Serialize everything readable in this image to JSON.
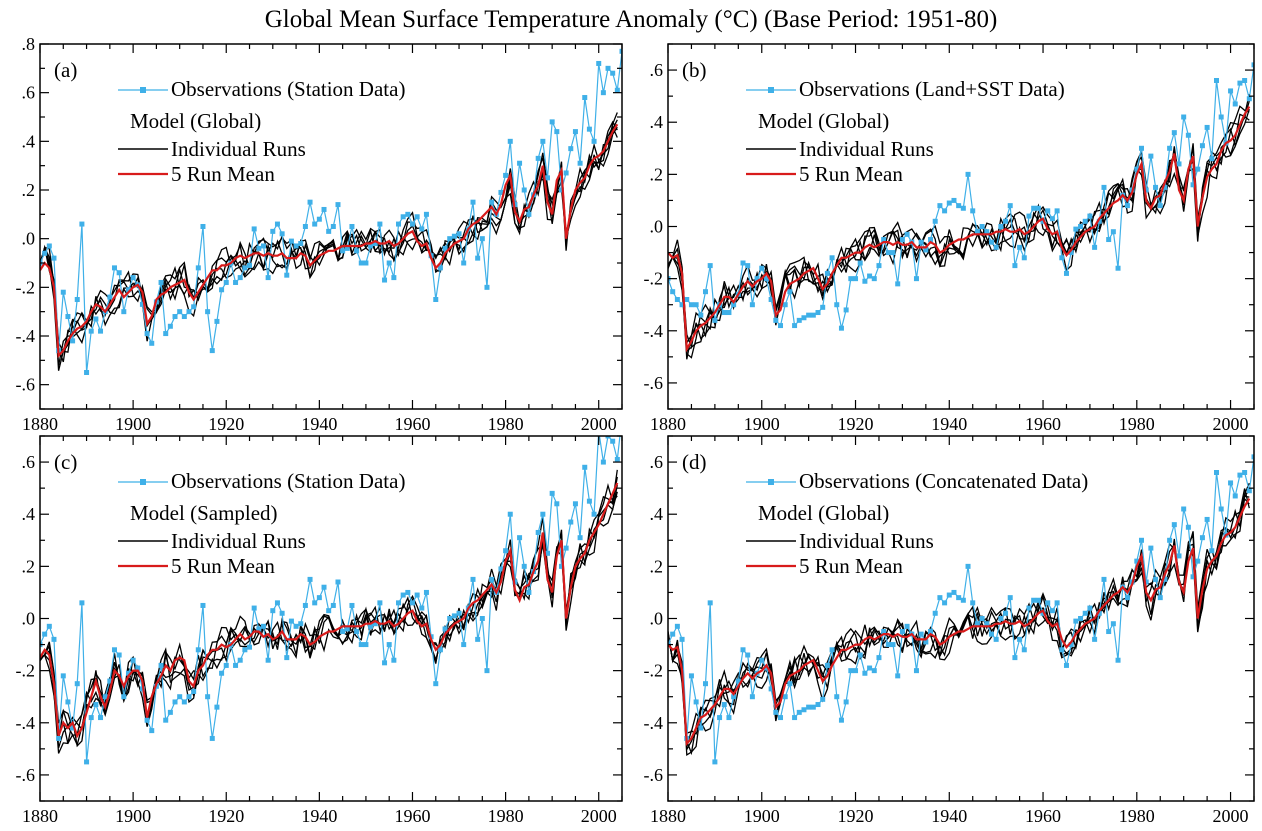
{
  "title": "Global Mean Surface Temperature Anomaly (°C) (Base Period: 1951-80)",
  "colors": {
    "observations": "#3fb0e8",
    "individual_runs": "#000000",
    "run_mean": "#d81b1b",
    "axes": "#000000"
  },
  "chart_data": [
    {
      "type": "line",
      "panel_label": "(a)",
      "legend": {
        "observations": "Observations (Station Data)",
        "model_header": "Model (Global)",
        "runs": "Individual Runs",
        "mean": "5 Run Mean"
      },
      "xlim": [
        1880,
        2005
      ],
      "ylim": [
        -0.7,
        0.8
      ],
      "x_ticks": [
        1880,
        1900,
        1920,
        1940,
        1960,
        1980,
        2000
      ],
      "y_ticks": [
        -0.6,
        -0.4,
        -0.2,
        0.0,
        0.2,
        0.4,
        0.6,
        0.8
      ],
      "y_tick_labels": [
        "-.6",
        "-.4",
        "-.2",
        ".0",
        ".2",
        ".4",
        ".6",
        ".8"
      ],
      "observations_years": [
        1880,
        2005
      ],
      "observations_values": [
        -0.1,
        -0.06,
        -0.03,
        -0.08,
        -0.46,
        -0.22,
        -0.32,
        -0.42,
        -0.25,
        0.06,
        -0.55,
        -0.38,
        -0.33,
        -0.38,
        -0.3,
        -0.24,
        -0.12,
        -0.14,
        -0.3,
        -0.21,
        -0.16,
        -0.19,
        -0.27,
        -0.39,
        -0.43,
        -0.26,
        -0.18,
        -0.39,
        -0.36,
        -0.32,
        -0.3,
        -0.32,
        -0.3,
        -0.28,
        -0.12,
        0.05,
        -0.3,
        -0.46,
        -0.34,
        -0.21,
        -0.18,
        -0.1,
        -0.18,
        -0.16,
        -0.12,
        -0.11,
        0.04,
        -0.04,
        -0.03,
        -0.16,
        0.03,
        0.06,
        0.02,
        -0.15,
        -0.01,
        -0.03,
        -0.02,
        0.05,
        0.15,
        0.06,
        0.08,
        0.12,
        0.03,
        0.05,
        0.14,
        -0.05,
        -0.04,
        0.05,
        -0.05,
        -0.1,
        -0.1,
        -0.03,
        -0.02,
        0.06,
        -0.17,
        -0.1,
        -0.16,
        0.06,
        0.09,
        0.1,
        0.06,
        0.09,
        0.04,
        0.1,
        -0.07,
        -0.25,
        -0.12,
        -0.04,
        0.0,
        0.01,
        0.02,
        -0.1,
        0.04,
        0.15,
        -0.08,
        0.0,
        -0.2,
        0.15,
        0.1,
        0.19,
        0.26,
        0.4,
        0.14,
        0.31,
        0.2,
        0.1,
        0.18,
        0.33,
        0.4,
        0.25,
        0.48,
        0.44,
        0.2,
        0.27,
        0.37,
        0.44,
        0.31,
        0.58,
        0.45,
        0.4,
        0.72,
        0.6,
        0.7,
        0.68,
        0.61,
        0.77
      ],
      "runs_start_year": 1880,
      "run_mean": [
        -0.13,
        -0.1,
        -0.12,
        -0.2,
        -0.48,
        -0.46,
        -0.42,
        -0.39,
        -0.37,
        -0.36,
        -0.34,
        -0.3,
        -0.27,
        -0.28,
        -0.3,
        -0.27,
        -0.24,
        -0.21,
        -0.24,
        -0.22,
        -0.2,
        -0.19,
        -0.22,
        -0.35,
        -0.32,
        -0.25,
        -0.23,
        -0.22,
        -0.2,
        -0.19,
        -0.18,
        -0.17,
        -0.22,
        -0.25,
        -0.22,
        -0.19,
        -0.16,
        -0.13,
        -0.13,
        -0.11,
        -0.11,
        -0.1,
        -0.08,
        -0.07,
        -0.08,
        -0.07,
        -0.06,
        -0.06,
        -0.07,
        -0.06,
        -0.07,
        -0.07,
        -0.06,
        -0.08,
        -0.08,
        -0.08,
        -0.06,
        -0.07,
        -0.11,
        -0.09,
        -0.07,
        -0.06,
        -0.05,
        -0.05,
        -0.04,
        -0.03,
        -0.03,
        -0.03,
        -0.03,
        -0.03,
        -0.02,
        -0.02,
        -0.01,
        -0.02,
        -0.02,
        -0.01,
        -0.03,
        -0.02,
        0.0,
        0.02,
        0.03,
        -0.01,
        -0.03,
        -0.02,
        -0.08,
        -0.12,
        -0.1,
        -0.06,
        -0.04,
        -0.02,
        -0.01,
        0.0,
        0.04,
        0.06,
        0.07,
        0.09,
        0.11,
        0.13,
        0.1,
        0.14,
        0.22,
        0.26,
        0.11,
        0.07,
        0.12,
        0.13,
        0.18,
        0.22,
        0.3,
        0.15,
        0.1,
        0.24,
        0.28,
        0.0,
        0.12,
        0.2,
        0.23,
        0.25,
        0.3,
        0.33,
        0.34,
        0.36,
        0.4,
        0.44,
        0.47
      ]
    },
    {
      "type": "line",
      "panel_label": "(b)",
      "legend": {
        "observations": "Observations (Land+SST Data)",
        "model_header": "Model (Global)",
        "runs": "Individual Runs",
        "mean": "5 Run Mean"
      },
      "xlim": [
        1880,
        2005
      ],
      "ylim": [
        -0.7,
        0.7
      ],
      "x_ticks": [
        1880,
        1900,
        1920,
        1940,
        1960,
        1980,
        2000
      ],
      "y_ticks": [
        -0.6,
        -0.4,
        -0.2,
        0.0,
        0.2,
        0.4,
        0.6
      ],
      "y_tick_labels": [
        "-.6",
        "-.4",
        "-.2",
        ".0",
        ".2",
        ".4",
        ".6"
      ],
      "observations_years": [
        1880,
        2005
      ],
      "observations_values": [
        -0.2,
        -0.25,
        -0.28,
        -0.3,
        -0.28,
        -0.3,
        -0.3,
        -0.34,
        -0.25,
        -0.15,
        -0.36,
        -0.3,
        -0.33,
        -0.33,
        -0.3,
        -0.26,
        -0.14,
        -0.15,
        -0.3,
        -0.2,
        -0.16,
        -0.2,
        -0.28,
        -0.36,
        -0.38,
        -0.3,
        -0.25,
        -0.38,
        -0.36,
        -0.35,
        -0.34,
        -0.34,
        -0.33,
        -0.31,
        -0.18,
        -0.12,
        -0.3,
        -0.39,
        -0.32,
        -0.2,
        -0.2,
        -0.14,
        -0.21,
        -0.19,
        -0.2,
        -0.15,
        -0.05,
        -0.1,
        -0.1,
        -0.22,
        -0.05,
        -0.03,
        -0.06,
        -0.2,
        -0.06,
        -0.09,
        -0.05,
        0.02,
        0.08,
        0.06,
        0.09,
        0.1,
        0.08,
        0.07,
        0.2,
        0.06,
        -0.02,
        0.0,
        -0.02,
        -0.06,
        -0.08,
        0.0,
        0.02,
        0.08,
        -0.15,
        -0.08,
        -0.12,
        0.04,
        0.07,
        0.07,
        0.02,
        0.06,
        0.03,
        0.06,
        -0.12,
        -0.18,
        -0.1,
        -0.01,
        0.0,
        0.02,
        0.04,
        -0.08,
        0.02,
        0.15,
        -0.05,
        -0.02,
        -0.16,
        0.12,
        0.08,
        0.14,
        0.22,
        0.3,
        0.14,
        0.27,
        0.15,
        0.08,
        0.15,
        0.3,
        0.36,
        0.24,
        0.42,
        0.35,
        0.16,
        0.22,
        0.31,
        0.38,
        0.26,
        0.56,
        0.42,
        0.32,
        0.52,
        0.47,
        0.55,
        0.56,
        0.49,
        0.62
      ],
      "runs_start_year": 1880,
      "run_mean": [
        -0.1,
        -0.12,
        -0.11,
        -0.18,
        -0.47,
        -0.44,
        -0.4,
        -0.38,
        -0.37,
        -0.35,
        -0.33,
        -0.3,
        -0.27,
        -0.27,
        -0.29,
        -0.26,
        -0.23,
        -0.21,
        -0.23,
        -0.21,
        -0.2,
        -0.18,
        -0.21,
        -0.34,
        -0.32,
        -0.25,
        -0.22,
        -0.21,
        -0.2,
        -0.18,
        -0.17,
        -0.16,
        -0.2,
        -0.24,
        -0.22,
        -0.18,
        -0.15,
        -0.12,
        -0.12,
        -0.11,
        -0.1,
        -0.1,
        -0.08,
        -0.07,
        -0.08,
        -0.07,
        -0.06,
        -0.06,
        -0.07,
        -0.06,
        -0.07,
        -0.07,
        -0.06,
        -0.08,
        -0.08,
        -0.08,
        -0.06,
        -0.07,
        -0.1,
        -0.09,
        -0.07,
        -0.06,
        -0.05,
        -0.05,
        -0.04,
        -0.03,
        -0.03,
        -0.03,
        -0.03,
        -0.03,
        -0.02,
        -0.02,
        -0.01,
        -0.02,
        -0.02,
        -0.01,
        -0.03,
        -0.02,
        0.0,
        0.02,
        0.03,
        -0.01,
        -0.03,
        -0.02,
        -0.08,
        -0.11,
        -0.09,
        -0.06,
        -0.04,
        -0.02,
        -0.01,
        0.0,
        0.03,
        0.05,
        0.07,
        0.09,
        0.1,
        0.12,
        0.1,
        0.13,
        0.2,
        0.24,
        0.1,
        0.07,
        0.11,
        0.12,
        0.17,
        0.21,
        0.28,
        0.14,
        0.1,
        0.22,
        0.27,
        0.0,
        0.11,
        0.19,
        0.22,
        0.24,
        0.29,
        0.32,
        0.33,
        0.35,
        0.39,
        0.43,
        0.46
      ]
    },
    {
      "type": "line",
      "panel_label": "(c)",
      "legend": {
        "observations": "Observations (Station Data)",
        "model_header": "Model (Sampled)",
        "runs": "Individual Runs",
        "mean": "5 Run Mean"
      },
      "xlim": [
        1880,
        2005
      ],
      "ylim": [
        -0.7,
        0.7
      ],
      "x_ticks": [
        1880,
        1900,
        1920,
        1940,
        1960,
        1980,
        2000
      ],
      "y_ticks": [
        -0.6,
        -0.4,
        -0.2,
        0.0,
        0.2,
        0.4,
        0.6
      ],
      "y_tick_labels": [
        "-.6",
        "-.4",
        "-.2",
        ".0",
        ".2",
        ".4",
        ".6"
      ],
      "observations_years": [
        1880,
        2005
      ],
      "observations_values": [
        -0.1,
        -0.06,
        -0.03,
        -0.08,
        -0.46,
        -0.22,
        -0.32,
        -0.42,
        -0.25,
        0.06,
        -0.55,
        -0.38,
        -0.33,
        -0.38,
        -0.3,
        -0.24,
        -0.12,
        -0.14,
        -0.3,
        -0.21,
        -0.16,
        -0.19,
        -0.27,
        -0.39,
        -0.43,
        -0.26,
        -0.18,
        -0.39,
        -0.36,
        -0.32,
        -0.3,
        -0.32,
        -0.3,
        -0.28,
        -0.12,
        0.05,
        -0.3,
        -0.46,
        -0.34,
        -0.21,
        -0.18,
        -0.1,
        -0.18,
        -0.16,
        -0.12,
        -0.11,
        0.04,
        -0.04,
        -0.03,
        -0.16,
        0.03,
        0.06,
        0.02,
        -0.15,
        -0.01,
        -0.03,
        -0.02,
        0.05,
        0.15,
        0.06,
        0.08,
        0.12,
        0.03,
        0.05,
        0.14,
        -0.05,
        -0.04,
        0.05,
        -0.05,
        -0.1,
        -0.1,
        -0.03,
        -0.02,
        0.06,
        -0.17,
        -0.1,
        -0.16,
        0.06,
        0.09,
        0.1,
        0.06,
        0.09,
        0.04,
        0.1,
        -0.07,
        -0.25,
        -0.12,
        -0.04,
        0.0,
        0.01,
        0.02,
        -0.1,
        0.04,
        0.15,
        -0.08,
        0.0,
        -0.2,
        0.15,
        0.1,
        0.19,
        0.26,
        0.4,
        0.14,
        0.31,
        0.2,
        0.1,
        0.18,
        0.33,
        0.4,
        0.25,
        0.48,
        0.44,
        0.2,
        0.27,
        0.37,
        0.44,
        0.31,
        0.58,
        0.45,
        0.4,
        0.72,
        0.6,
        0.7,
        0.68,
        0.61,
        0.77
      ],
      "runs_start_year": 1880,
      "run_mean": [
        -0.15,
        -0.12,
        -0.14,
        -0.25,
        -0.45,
        -0.4,
        -0.42,
        -0.4,
        -0.45,
        -0.42,
        -0.36,
        -0.3,
        -0.24,
        -0.3,
        -0.34,
        -0.28,
        -0.2,
        -0.22,
        -0.26,
        -0.22,
        -0.2,
        -0.2,
        -0.24,
        -0.38,
        -0.3,
        -0.25,
        -0.22,
        -0.18,
        -0.2,
        -0.16,
        -0.15,
        -0.16,
        -0.24,
        -0.26,
        -0.2,
        -0.18,
        -0.14,
        -0.12,
        -0.12,
        -0.1,
        -0.11,
        -0.1,
        -0.08,
        -0.06,
        -0.08,
        -0.07,
        -0.05,
        -0.05,
        -0.07,
        -0.06,
        -0.08,
        -0.07,
        -0.05,
        -0.08,
        -0.08,
        -0.08,
        -0.06,
        -0.07,
        -0.1,
        -0.09,
        -0.07,
        -0.06,
        -0.05,
        -0.05,
        -0.04,
        -0.03,
        -0.03,
        -0.03,
        -0.03,
        -0.03,
        -0.02,
        -0.02,
        -0.01,
        -0.02,
        -0.02,
        -0.01,
        -0.03,
        -0.02,
        0.0,
        0.02,
        0.03,
        -0.01,
        -0.03,
        -0.02,
        -0.08,
        -0.12,
        -0.1,
        -0.06,
        -0.04,
        -0.02,
        -0.01,
        0.0,
        0.04,
        0.06,
        0.07,
        0.09,
        0.11,
        0.13,
        0.1,
        0.14,
        0.22,
        0.26,
        0.11,
        0.07,
        0.12,
        0.13,
        0.18,
        0.22,
        0.33,
        0.15,
        0.1,
        0.24,
        0.3,
        0.0,
        0.12,
        0.2,
        0.23,
        0.25,
        0.3,
        0.33,
        0.36,
        0.4,
        0.44,
        0.48,
        0.52
      ]
    },
    {
      "type": "line",
      "panel_label": "(d)",
      "legend": {
        "observations": "Observations (Concatenated Data)",
        "model_header": "Model (Global)",
        "runs": "Individual Runs",
        "mean": "5 Run Mean"
      },
      "xlim": [
        1880,
        2005
      ],
      "ylim": [
        -0.7,
        0.7
      ],
      "x_ticks": [
        1880,
        1900,
        1920,
        1940,
        1960,
        1980,
        2000
      ],
      "y_ticks": [
        -0.6,
        -0.4,
        -0.2,
        0.0,
        0.2,
        0.4,
        0.6
      ],
      "y_tick_labels": [
        "-.6",
        "-.4",
        "-.2",
        ".0",
        ".2",
        ".4",
        ".6"
      ],
      "observations_years": [
        1880,
        2005
      ],
      "observations_values": [
        -0.1,
        -0.06,
        -0.03,
        -0.08,
        -0.46,
        -0.22,
        -0.32,
        -0.42,
        -0.25,
        0.06,
        -0.55,
        -0.38,
        -0.33,
        -0.38,
        -0.3,
        -0.24,
        -0.12,
        -0.14,
        -0.3,
        -0.21,
        -0.16,
        -0.19,
        -0.27,
        -0.36,
        -0.38,
        -0.3,
        -0.25,
        -0.38,
        -0.36,
        -0.35,
        -0.34,
        -0.34,
        -0.33,
        -0.31,
        -0.18,
        -0.12,
        -0.3,
        -0.39,
        -0.32,
        -0.2,
        -0.2,
        -0.14,
        -0.21,
        -0.19,
        -0.2,
        -0.15,
        -0.05,
        -0.1,
        -0.1,
        -0.22,
        -0.05,
        -0.03,
        -0.06,
        -0.2,
        -0.06,
        -0.09,
        -0.05,
        0.02,
        0.08,
        0.06,
        0.09,
        0.1,
        0.08,
        0.07,
        0.2,
        0.06,
        -0.02,
        0.0,
        -0.02,
        -0.06,
        -0.08,
        0.0,
        0.02,
        0.08,
        -0.15,
        -0.08,
        -0.12,
        0.04,
        0.07,
        0.07,
        0.02,
        0.06,
        0.03,
        0.06,
        -0.12,
        -0.18,
        -0.1,
        -0.01,
        0.0,
        0.02,
        0.04,
        -0.08,
        0.02,
        0.15,
        -0.05,
        -0.02,
        -0.16,
        0.12,
        0.08,
        0.14,
        0.22,
        0.3,
        0.14,
        0.27,
        0.15,
        0.08,
        0.15,
        0.3,
        0.36,
        0.24,
        0.42,
        0.35,
        0.16,
        0.22,
        0.31,
        0.38,
        0.26,
        0.56,
        0.42,
        0.32,
        0.52,
        0.47,
        0.55,
        0.56,
        0.49,
        0.62
      ],
      "runs_start_year": 1880,
      "run_mean": [
        -0.1,
        -0.12,
        -0.11,
        -0.2,
        -0.48,
        -0.46,
        -0.42,
        -0.38,
        -0.37,
        -0.35,
        -0.33,
        -0.3,
        -0.27,
        -0.27,
        -0.29,
        -0.26,
        -0.23,
        -0.21,
        -0.23,
        -0.21,
        -0.2,
        -0.18,
        -0.21,
        -0.34,
        -0.32,
        -0.25,
        -0.22,
        -0.21,
        -0.2,
        -0.18,
        -0.17,
        -0.16,
        -0.2,
        -0.24,
        -0.22,
        -0.18,
        -0.15,
        -0.12,
        -0.12,
        -0.11,
        -0.1,
        -0.1,
        -0.08,
        -0.07,
        -0.08,
        -0.07,
        -0.06,
        -0.06,
        -0.07,
        -0.06,
        -0.07,
        -0.07,
        -0.06,
        -0.08,
        -0.08,
        -0.08,
        -0.06,
        -0.07,
        -0.1,
        -0.09,
        -0.07,
        -0.06,
        -0.05,
        -0.05,
        -0.04,
        -0.03,
        -0.03,
        -0.03,
        -0.03,
        -0.03,
        -0.02,
        -0.02,
        -0.01,
        -0.02,
        -0.02,
        -0.01,
        -0.03,
        -0.02,
        0.0,
        0.02,
        0.03,
        -0.01,
        -0.03,
        -0.02,
        -0.08,
        -0.11,
        -0.09,
        -0.06,
        -0.04,
        -0.02,
        -0.01,
        0.0,
        0.03,
        0.05,
        0.07,
        0.09,
        0.1,
        0.12,
        0.1,
        0.13,
        0.2,
        0.24,
        0.1,
        0.07,
        0.11,
        0.12,
        0.17,
        0.21,
        0.28,
        0.14,
        0.1,
        0.22,
        0.27,
        0.0,
        0.11,
        0.19,
        0.22,
        0.24,
        0.29,
        0.32,
        0.33,
        0.35,
        0.39,
        0.43,
        0.46
      ]
    }
  ]
}
